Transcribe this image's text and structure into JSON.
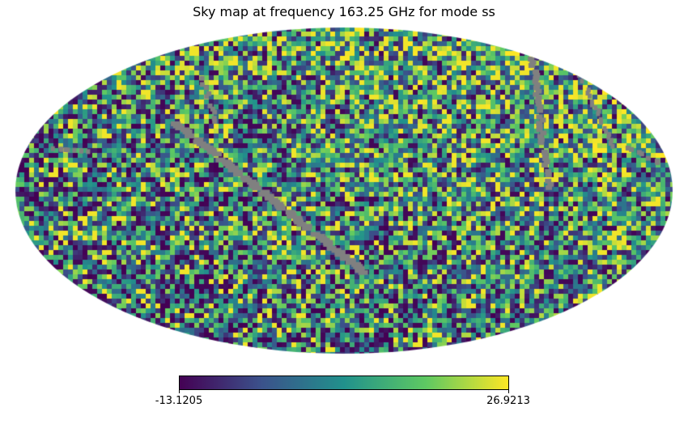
{
  "chart_data": {
    "type": "heatmap",
    "projection": "mollweide",
    "title": "Sky map at frequency 163.25 GHz for mode ss",
    "colormap": "viridis",
    "colorbar": {
      "min": -13.1205,
      "max": 26.9213,
      "min_label": "-13.1205",
      "max_label": "26.9213",
      "orientation": "horizontal"
    },
    "masked_color": "#808080",
    "colormap_stops": [
      "#440154",
      "#3b528b",
      "#21918c",
      "#5ec962",
      "#fde725"
    ]
  }
}
